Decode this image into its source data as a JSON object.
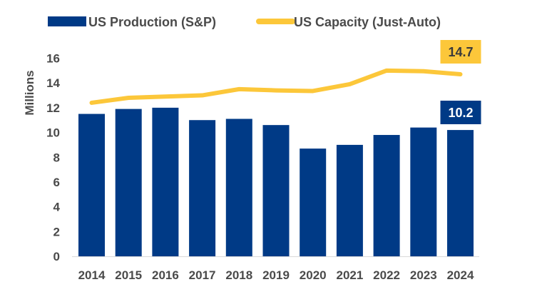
{
  "chart_data": {
    "type": "bar",
    "title": "",
    "xlabel": "",
    "ylabel": "Millions",
    "ylim": [
      0,
      16
    ],
    "yticks": [
      "0",
      "2",
      "4",
      "6",
      "8",
      "10",
      "12",
      "14",
      "16"
    ],
    "grid": false,
    "legend_position": "top",
    "categories": [
      "2014",
      "2015",
      "2016",
      "2017",
      "2018",
      "2019",
      "2020",
      "2021",
      "2022",
      "2023",
      "2024"
    ],
    "series": [
      {
        "name": "US Production (S&P)",
        "type": "bar",
        "color": "#003A86",
        "values": [
          11.5,
          11.9,
          12.0,
          11.0,
          11.1,
          10.6,
          8.7,
          9.0,
          9.8,
          10.4,
          10.2
        ],
        "end_label": "10.2",
        "end_label_text_color": "#ffffff"
      },
      {
        "name": "US Capacity (Just-Auto)",
        "type": "line",
        "color": "#FCC73A",
        "values": [
          12.4,
          12.8,
          12.9,
          13.0,
          13.5,
          13.4,
          13.35,
          13.9,
          15.0,
          14.95,
          14.7
        ],
        "end_label": "14.7",
        "end_label_text_color": "#3a3a3a"
      }
    ]
  }
}
